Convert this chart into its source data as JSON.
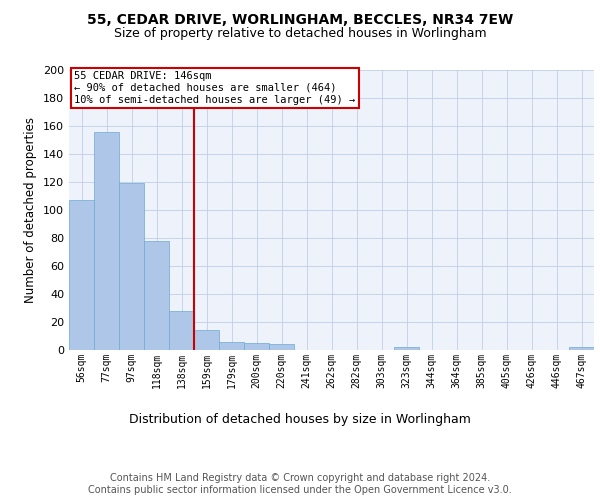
{
  "title": "55, CEDAR DRIVE, WORLINGHAM, BECCLES, NR34 7EW",
  "subtitle": "Size of property relative to detached houses in Worlingham",
  "xlabel": "Distribution of detached houses by size in Worlingham",
  "ylabel": "Number of detached properties",
  "bar_labels": [
    "56sqm",
    "77sqm",
    "97sqm",
    "118sqm",
    "138sqm",
    "159sqm",
    "179sqm",
    "200sqm",
    "220sqm",
    "241sqm",
    "262sqm",
    "282sqm",
    "303sqm",
    "323sqm",
    "344sqm",
    "364sqm",
    "385sqm",
    "405sqm",
    "426sqm",
    "446sqm",
    "467sqm"
  ],
  "bar_values": [
    107,
    156,
    119,
    78,
    28,
    14,
    6,
    5,
    4,
    0,
    0,
    0,
    0,
    2,
    0,
    0,
    0,
    0,
    0,
    0,
    2
  ],
  "bar_color": "#aec6e8",
  "bar_edgecolor": "#6aaad4",
  "background_color": "#eef3fb",
  "grid_color": "#c0cfe8",
  "annotation_line1": "55 CEDAR DRIVE: 146sqm",
  "annotation_line2": "← 90% of detached houses are smaller (464)",
  "annotation_line3": "10% of semi-detached houses are larger (49) →",
  "vline_x": 4.5,
  "vline_color": "#cc0000",
  "annotation_box_edgecolor": "#cc0000",
  "ylim": [
    0,
    200
  ],
  "yticks": [
    0,
    20,
    40,
    60,
    80,
    100,
    120,
    140,
    160,
    180,
    200
  ],
  "footer": "Contains HM Land Registry data © Crown copyright and database right 2024.\nContains public sector information licensed under the Open Government Licence v3.0.",
  "title_fontsize": 10,
  "subtitle_fontsize": 9,
  "xlabel_fontsize": 9,
  "ylabel_fontsize": 8.5,
  "tick_fontsize": 7,
  "annotation_fontsize": 7.5,
  "footer_fontsize": 7,
  "ytick_fontsize": 8
}
